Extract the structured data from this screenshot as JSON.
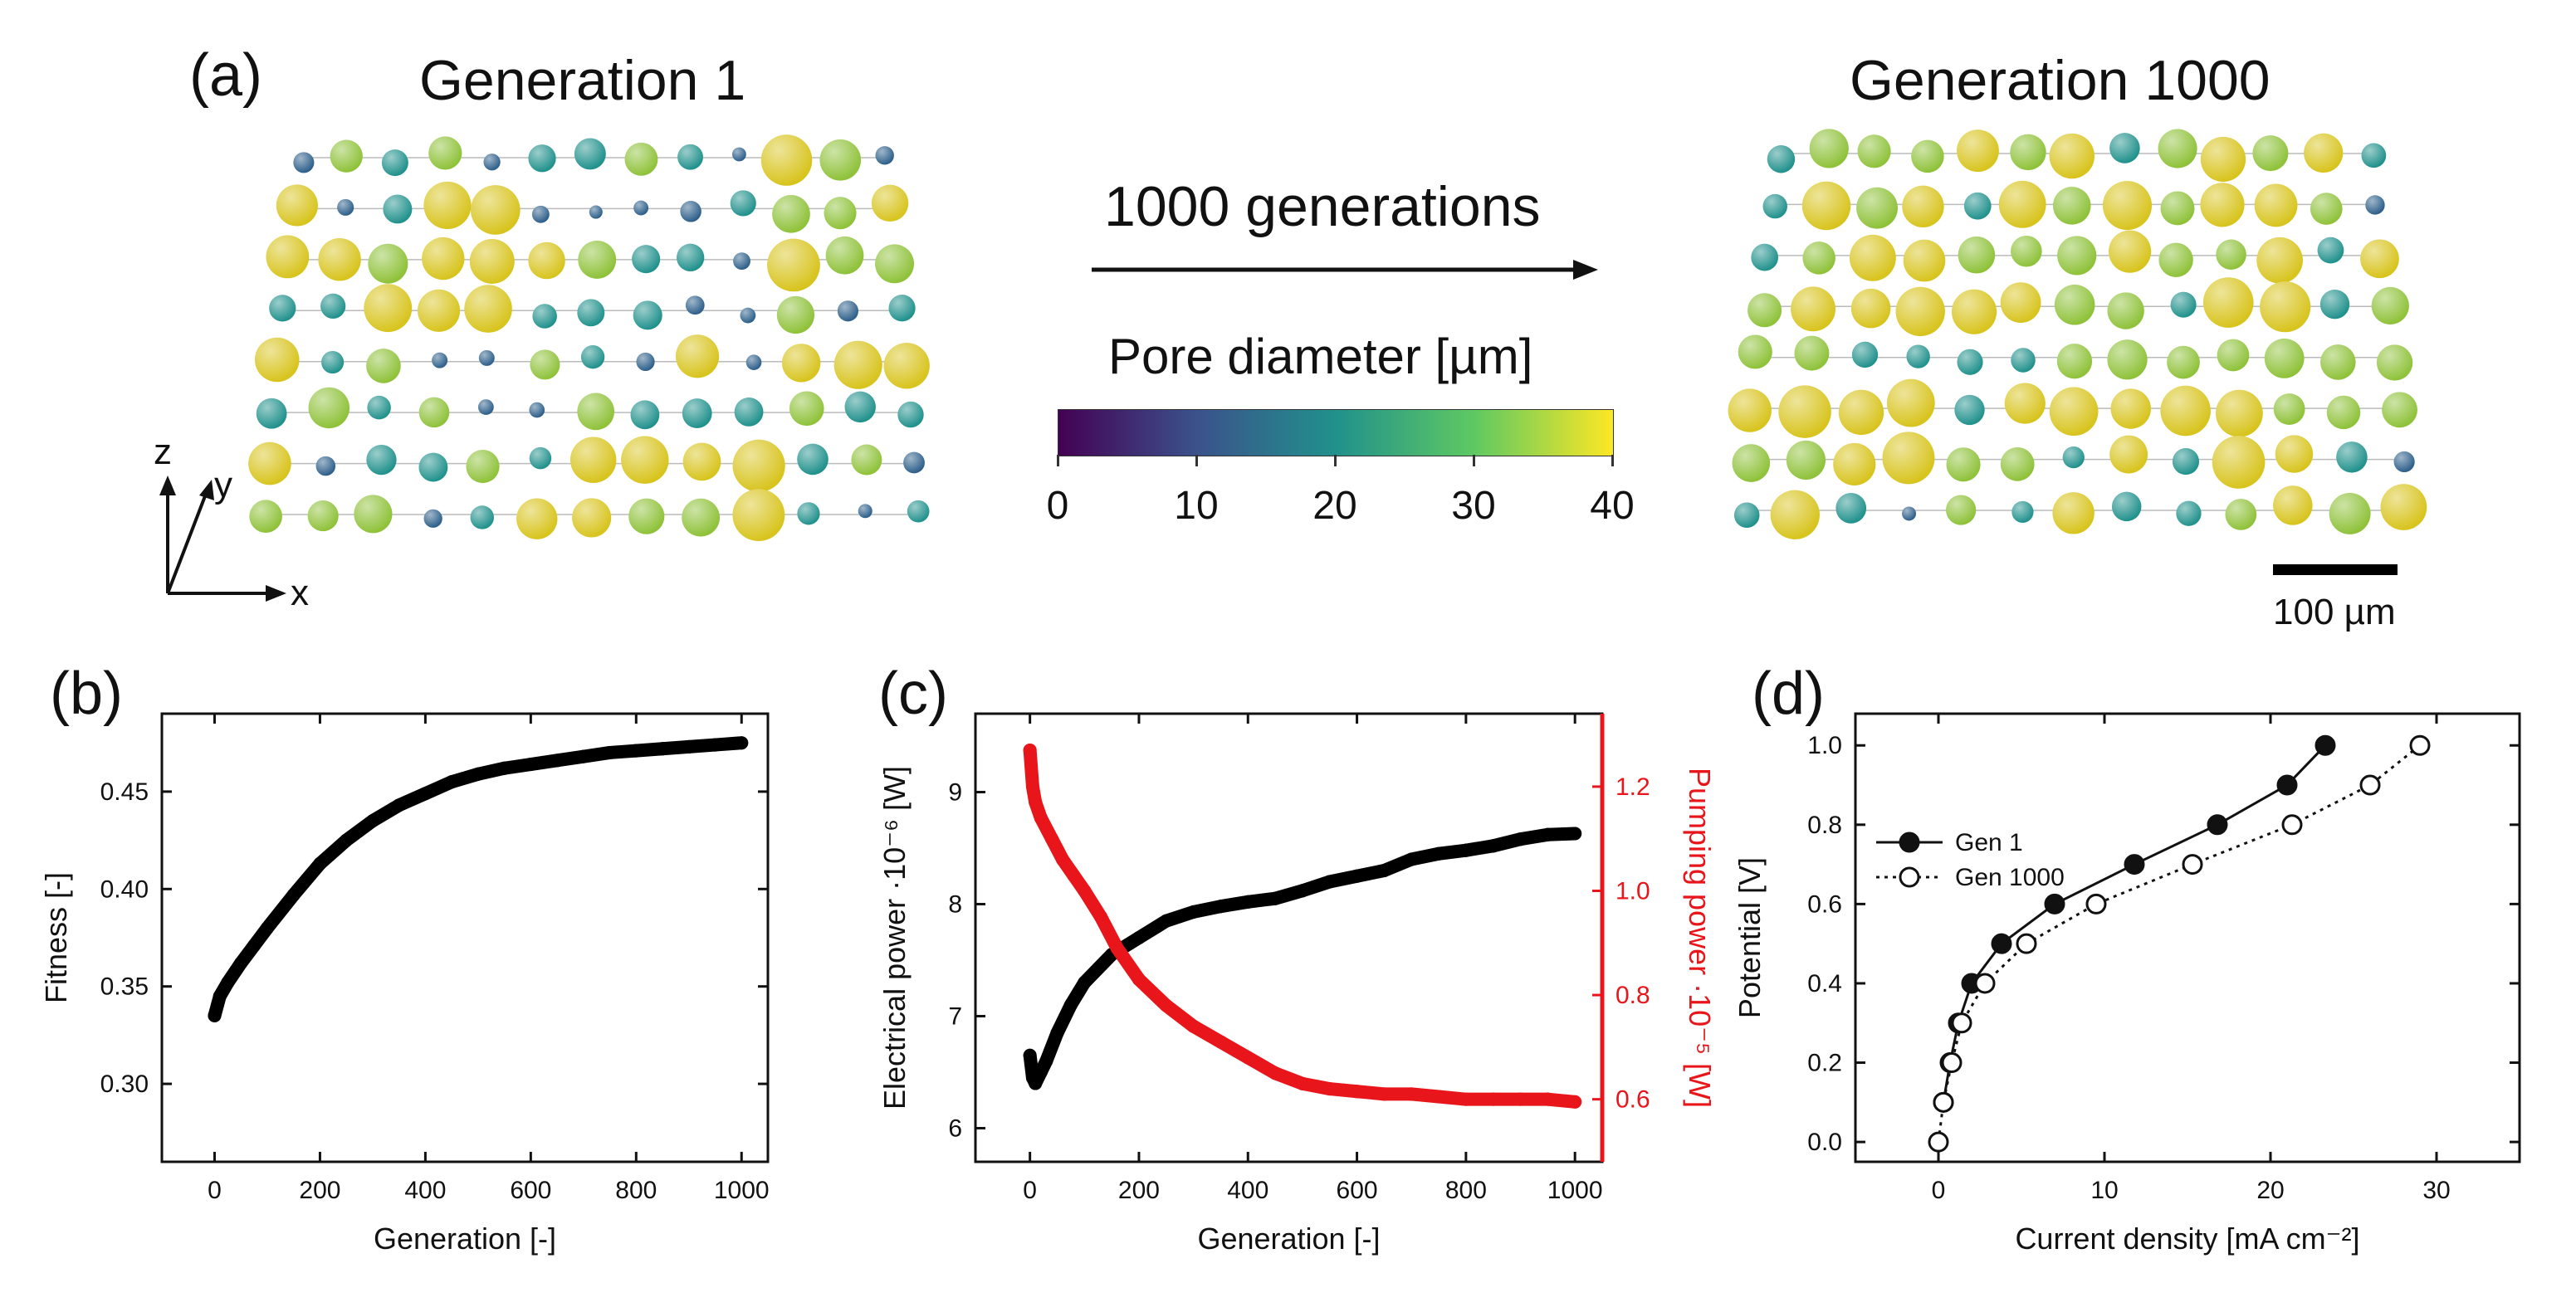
{
  "panel_a": {
    "label": "(a)",
    "left_title": "Generation 1",
    "right_title": "Generation 1000",
    "arrow_label": "1000 generations",
    "colorbar": {
      "title": "Pore diameter [µm]",
      "ticks": [
        "0",
        "10",
        "20",
        "30",
        "40"
      ],
      "colors": [
        "#440154",
        "#3b528b",
        "#21918c",
        "#5ec962",
        "#fde725"
      ]
    },
    "axes_labels": {
      "z": "z",
      "y": "y",
      "x": "x"
    },
    "scale_bar": "100 µm",
    "lattice_colors": {
      "small": "#2d5f8a",
      "mid": "#21918c",
      "large": "#8fc23a",
      "xlarge": "#d8c41e"
    }
  },
  "panel_b": {
    "label": "(b)"
  },
  "panel_c": {
    "label": "(c)"
  },
  "panel_d": {
    "label": "(d)"
  },
  "chart_data": [
    {
      "panel": "b",
      "type": "scatter",
      "xlabel": "Generation [-]",
      "ylabel": "Fitness [-]",
      "xlim": [
        -100,
        1050
      ],
      "ylim": [
        0.26,
        0.49
      ],
      "xticks": [
        "0",
        "200",
        "400",
        "600",
        "800",
        "1000"
      ],
      "yticks": [
        "0.30",
        "0.35",
        "0.40",
        "0.45"
      ],
      "color": "#000000",
      "x": [
        0,
        10,
        25,
        50,
        75,
        100,
        150,
        200,
        250,
        300,
        350,
        400,
        450,
        500,
        550,
        600,
        650,
        700,
        750,
        800,
        850,
        900,
        950,
        1000
      ],
      "y": [
        0.335,
        0.345,
        0.352,
        0.362,
        0.371,
        0.38,
        0.397,
        0.413,
        0.425,
        0.435,
        0.443,
        0.449,
        0.455,
        0.459,
        0.462,
        0.464,
        0.466,
        0.468,
        0.47,
        0.471,
        0.472,
        0.473,
        0.474,
        0.475
      ]
    },
    {
      "panel": "c",
      "type": "scatter",
      "xlabel": "Generation [-]",
      "ylabel": "Electrical power ·10⁻⁶ [W]",
      "ylabel_right": "Pumping power ·10⁻⁵ [W]",
      "xlim": [
        -100,
        1050
      ],
      "ylim": [
        5.7,
        9.7
      ],
      "ylim_right": [
        0.48,
        1.34
      ],
      "xticks": [
        "0",
        "200",
        "400",
        "600",
        "800",
        "1000"
      ],
      "yticks": [
        "6",
        "7",
        "8",
        "9"
      ],
      "yticks_right": [
        "0.6",
        "0.8",
        "1.0",
        "1.2"
      ],
      "series": [
        {
          "color": "#000000",
          "axis": "left",
          "x": [
            0,
            5,
            10,
            20,
            30,
            50,
            75,
            100,
            150,
            200,
            250,
            300,
            350,
            400,
            450,
            500,
            550,
            600,
            650,
            700,
            750,
            800,
            850,
            900,
            950,
            1000
          ],
          "y": [
            6.65,
            6.45,
            6.4,
            6.5,
            6.6,
            6.85,
            7.1,
            7.3,
            7.55,
            7.7,
            7.85,
            7.93,
            7.98,
            8.02,
            8.05,
            8.12,
            8.2,
            8.25,
            8.3,
            8.4,
            8.45,
            8.48,
            8.52,
            8.58,
            8.62,
            8.63
          ]
        },
        {
          "color": "#e8161b",
          "axis": "right",
          "x": [
            0,
            5,
            10,
            20,
            40,
            60,
            80,
            100,
            130,
            160,
            200,
            250,
            300,
            350,
            400,
            450,
            500,
            550,
            600,
            650,
            700,
            750,
            800,
            850,
            900,
            950,
            1000
          ],
          "y": [
            1.27,
            1.2,
            1.17,
            1.14,
            1.1,
            1.06,
            1.03,
            1.0,
            0.95,
            0.89,
            0.83,
            0.78,
            0.74,
            0.71,
            0.68,
            0.65,
            0.63,
            0.62,
            0.615,
            0.61,
            0.61,
            0.605,
            0.6,
            0.6,
            0.6,
            0.6,
            0.595
          ]
        }
      ]
    },
    {
      "panel": "d",
      "type": "line",
      "xlabel": "Current density [mA cm⁻²]",
      "ylabel": "Potential [V]",
      "xlim": [
        -5,
        35
      ],
      "ylim": [
        -0.05,
        1.08
      ],
      "xticks": [
        "0",
        "10",
        "20",
        "30"
      ],
      "yticks": [
        "0.0",
        "0.2",
        "0.4",
        "0.6",
        "0.8",
        "1.0"
      ],
      "legend_position": "left",
      "series": [
        {
          "name": "Gen 1",
          "style": "solid",
          "marker": "filled",
          "x": [
            0.3,
            0.7,
            1.2,
            2.0,
            3.8,
            7.0,
            11.8,
            16.8,
            21.0,
            23.3
          ],
          "y": [
            0.1,
            0.2,
            0.3,
            0.4,
            0.5,
            0.6,
            0.7,
            0.8,
            0.9,
            1.0
          ]
        },
        {
          "name": "Gen 1000",
          "style": "dotted",
          "marker": "open",
          "x": [
            0.0,
            0.3,
            0.8,
            1.4,
            2.8,
            5.3,
            9.5,
            15.3,
            21.3,
            26.0,
            29.0
          ],
          "y": [
            0.0,
            0.1,
            0.2,
            0.3,
            0.4,
            0.5,
            0.6,
            0.7,
            0.8,
            0.9,
            1.0
          ]
        }
      ]
    }
  ]
}
